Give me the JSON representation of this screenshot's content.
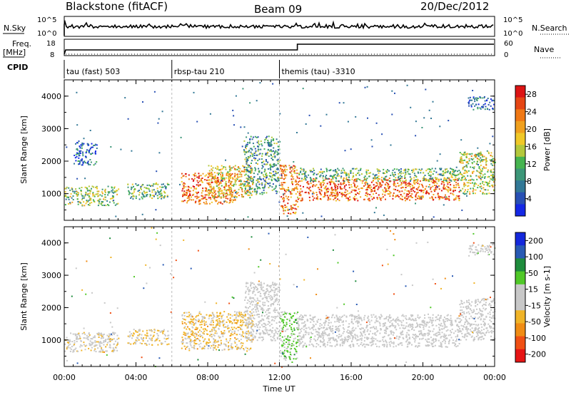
{
  "header": {
    "station": "Blackstone (fitACF)",
    "beam": "Beam 09",
    "date": "20/Dec/2012"
  },
  "top_panels": {
    "nsky_label": "N.Sky",
    "nsky_ticks": [
      "10^5",
      "10^0"
    ],
    "nsearch_label": "N.Search",
    "nsearch_ticks": [
      "10^5",
      "10^0"
    ],
    "freq_label": "Freq.",
    "freq_unit": "[MHz]",
    "freq_ticks": [
      "18",
      "8"
    ],
    "nave_label": "Nave",
    "nave_ticks": [
      "60",
      "0"
    ],
    "cpid_label": "CPID",
    "cpid_segments": [
      {
        "label": "tau (fast) 503",
        "start_h": 0.0,
        "end_h": 6.0
      },
      {
        "label": "rbsp-tau 210",
        "start_h": 6.0,
        "end_h": 12.0
      },
      {
        "label": "themis (tau) -3310",
        "start_h": 12.0,
        "end_h": 24.0
      }
    ],
    "nave_step_hour": 13.0
  },
  "chart_data": [
    {
      "type": "heatmap",
      "title": "",
      "xlabel": "Time UT",
      "ylabel": "Slant Range [km]",
      "xlim": [
        0,
        24
      ],
      "ylim": [
        180,
        4500
      ],
      "x_ticks": [
        "00:00",
        "04:00",
        "08:00",
        "12:00",
        "16:00",
        "20:00",
        "00:00"
      ],
      "y_ticks": [
        1000,
        2000,
        3000,
        4000
      ],
      "colorbar": {
        "label": "Power [dB]",
        "ticks": [
          4,
          8,
          12,
          16,
          20,
          24,
          28
        ],
        "range": [
          0,
          30
        ],
        "colors": [
          "#1428e6",
          "#2850b4",
          "#327896",
          "#3c9678",
          "#46b450",
          "#b4c83c",
          "#f0c828",
          "#f0a01e",
          "#f07814",
          "#e64614",
          "#dc1414"
        ]
      },
      "echo_bands": [
        {
          "start_h": 0.0,
          "end_h": 3.0,
          "range_km": [
            650,
            1250
          ],
          "power_db": 14
        },
        {
          "start_h": 0.5,
          "end_h": 1.8,
          "range_km": [
            1900,
            2600
          ],
          "power_db": 6
        },
        {
          "start_h": 3.5,
          "end_h": 5.8,
          "range_km": [
            850,
            1350
          ],
          "power_db": 12
        },
        {
          "start_h": 6.5,
          "end_h": 9.5,
          "range_km": [
            700,
            1650
          ],
          "power_db": 24
        },
        {
          "start_h": 8.0,
          "end_h": 10.5,
          "range_km": [
            900,
            1900
          ],
          "power_db": 18
        },
        {
          "start_h": 10.0,
          "end_h": 12.0,
          "range_km": [
            1000,
            2800
          ],
          "power_db": 10
        },
        {
          "start_h": 12.0,
          "end_h": 13.0,
          "range_km": [
            400,
            1900
          ],
          "power_db": 22
        },
        {
          "start_h": 13.0,
          "end_h": 22.0,
          "range_km": [
            800,
            1500
          ],
          "power_db": 24
        },
        {
          "start_h": 13.0,
          "end_h": 22.0,
          "range_km": [
            1400,
            1800
          ],
          "power_db": 12
        },
        {
          "start_h": 22.0,
          "end_h": 24.0,
          "range_km": [
            1000,
            2300
          ],
          "power_db": 16
        },
        {
          "start_h": 22.5,
          "end_h": 24.0,
          "range_km": [
            3600,
            4000
          ],
          "power_db": 5
        }
      ]
    },
    {
      "type": "heatmap",
      "title": "",
      "xlabel": "Time UT",
      "ylabel": "Slant Range [km]",
      "xlim": [
        0,
        24
      ],
      "ylim": [
        180,
        4500
      ],
      "x_ticks": [
        "00:00",
        "04:00",
        "08:00",
        "12:00",
        "16:00",
        "20:00",
        "00:00"
      ],
      "y_ticks": [
        1000,
        2000,
        3000,
        4000
      ],
      "colorbar": {
        "label": "Velocity [m s-1]",
        "ticks": [
          "200",
          "100",
          "50",
          "15",
          "-15",
          "-50",
          "-100",
          "-200"
        ],
        "range": [
          -250,
          250
        ],
        "colors": [
          "#1428dc",
          "#285ab4",
          "#1e8c3c",
          "#50c828",
          "#c8c8c8",
          "#c8c8c8",
          "#f0b428",
          "#f08c14",
          "#f05014",
          "#e61414"
        ]
      },
      "echo_bands": [
        {
          "start_h": 0.0,
          "end_h": 3.0,
          "range_km": [
            650,
            1250
          ],
          "velocity": -20
        },
        {
          "start_h": 3.5,
          "end_h": 5.8,
          "range_km": [
            850,
            1350
          ],
          "velocity": -50
        },
        {
          "start_h": 6.5,
          "end_h": 10.5,
          "range_km": [
            700,
            1900
          ],
          "velocity": -60
        },
        {
          "start_h": 10.0,
          "end_h": 12.0,
          "range_km": [
            1000,
            2800
          ],
          "velocity": 0
        },
        {
          "start_h": 12.0,
          "end_h": 13.0,
          "range_km": [
            400,
            1900
          ],
          "velocity": 60
        },
        {
          "start_h": 13.0,
          "end_h": 22.0,
          "range_km": [
            800,
            1800
          ],
          "velocity": 0
        },
        {
          "start_h": 22.0,
          "end_h": 24.0,
          "range_km": [
            1000,
            2300
          ],
          "velocity": 0
        },
        {
          "start_h": 22.5,
          "end_h": 24.0,
          "range_km": [
            3600,
            4000
          ],
          "velocity": 10
        }
      ]
    }
  ]
}
